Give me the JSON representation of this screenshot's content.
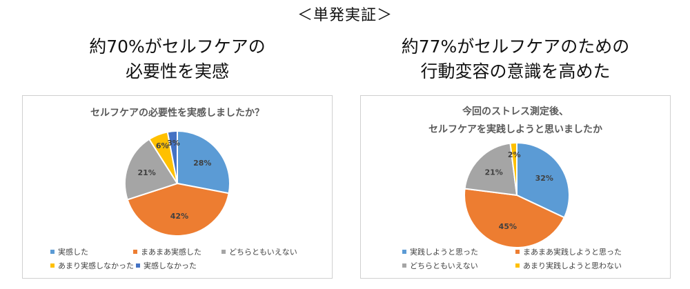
{
  "header": "＜単発実証＞",
  "panels": [
    {
      "headline": [
        "約70%がセルフケアの",
        "必要性を実感"
      ],
      "chart_data": {
        "type": "pie",
        "title": [
          "セルフケアの必要性を実感しましたか？"
        ],
        "labels": [
          "実感した",
          "まあまあ実感した",
          "どちらともいえない",
          "あまり実感しなかった",
          "実感しなかった"
        ],
        "values": [
          28,
          42,
          21,
          6,
          3
        ],
        "data_labels": [
          "28%",
          "42%",
          "21%",
          "6%",
          "3%"
        ],
        "colors": [
          "#5B9BD5",
          "#ED7D31",
          "#A5A5A5",
          "#FFC000",
          "#4472C4"
        ],
        "legend_position": "bottom"
      }
    },
    {
      "headline": [
        "約77%がセルフケアのための",
        "行動変容の意識を高めた"
      ],
      "chart_data": {
        "type": "pie",
        "title": [
          "今回のストレス測定後、",
          "セルフケアを実践しようと思いましたか"
        ],
        "labels": [
          "実践しようと思った",
          "まあまあ実践しようと思った",
          "どちらともいえない",
          "あまり実践しようと思わない"
        ],
        "values": [
          32,
          45,
          21,
          2
        ],
        "data_labels": [
          "32%",
          "45%",
          "21%",
          "2%"
        ],
        "colors": [
          "#5B9BD5",
          "#ED7D31",
          "#A5A5A5",
          "#FFC000"
        ],
        "legend_position": "bottom"
      }
    }
  ]
}
